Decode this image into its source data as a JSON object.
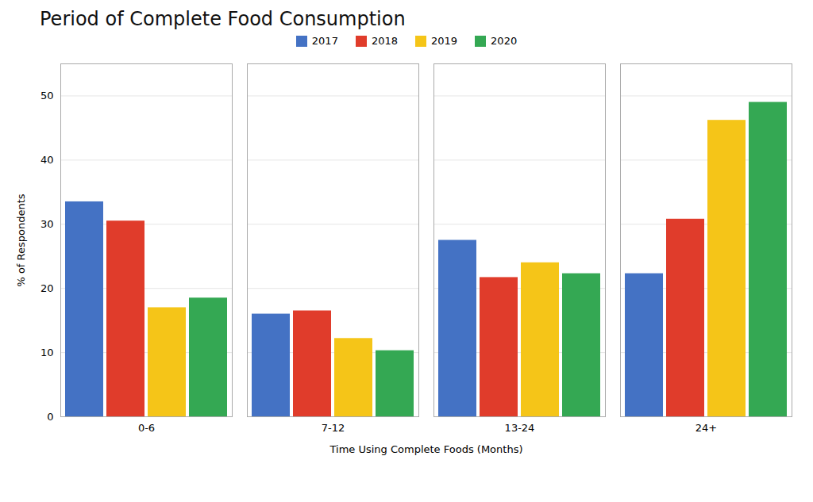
{
  "chart_data": {
    "type": "bar",
    "title": "Period of Complete Food Consumption",
    "xlabel": "Time Using Complete Foods (Months)",
    "ylabel": "% of Respondents",
    "categories": [
      "0-6",
      "7-12",
      "13-24",
      "24+"
    ],
    "series": [
      {
        "name": "2017",
        "color": "#4472C4",
        "values": [
          33.5,
          16.0,
          27.5,
          22.3
        ]
      },
      {
        "name": "2018",
        "color": "#E03C2B",
        "values": [
          30.5,
          16.5,
          21.7,
          30.8
        ]
      },
      {
        "name": "2019",
        "color": "#F5C518",
        "values": [
          17.0,
          12.2,
          24.0,
          46.2
        ]
      },
      {
        "name": "2020",
        "color": "#34A853",
        "values": [
          18.5,
          10.3,
          22.3,
          49.0
        ]
      }
    ],
    "ylim": [
      0,
      55
    ],
    "yticks": [
      0,
      10,
      20,
      30,
      40,
      50
    ],
    "grid": true,
    "legend": "top"
  }
}
